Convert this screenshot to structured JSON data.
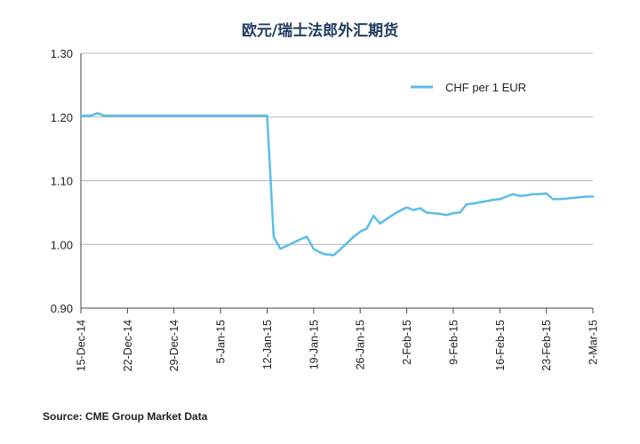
{
  "chart_data": {
    "type": "line",
    "title": "欧元/瑞士法郎外汇期货",
    "xlabel": "",
    "ylabel": "",
    "ylim": [
      0.9,
      1.3
    ],
    "yticks": [
      "0.90",
      "1.00",
      "1.10",
      "1.20",
      "1.30"
    ],
    "ytick_values": [
      0.9,
      1.0,
      1.1,
      1.2,
      1.3
    ],
    "xticks": [
      "15-Dec-14",
      "22-Dec-14",
      "29-Dec-14",
      "5-Jan-15",
      "12-Jan-15",
      "19-Jan-15",
      "26-Jan-15",
      "2-Feb-15",
      "9-Feb-15",
      "16-Feb-15",
      "23-Feb-15",
      "2-Mar-15"
    ],
    "xtick_days": [
      0,
      7,
      14,
      21,
      28,
      35,
      42,
      49,
      56,
      63,
      70,
      77
    ],
    "xlim": [
      0,
      77
    ],
    "grid": "horizontal",
    "legend_position": "top-right",
    "series": [
      {
        "name": "CHF per 1 EUR",
        "color": "#5bbde8",
        "x": [
          0,
          1.5,
          2.5,
          3.5,
          7,
          14,
          21,
          28,
          29,
          30,
          31,
          32,
          33,
          34,
          35,
          35.5,
          36.5,
          38,
          39,
          40,
          41,
          42,
          43,
          44,
          45,
          46,
          47,
          48,
          49,
          50,
          51,
          52,
          53,
          54,
          55,
          56,
          57,
          58,
          59,
          60,
          61,
          62,
          63,
          64,
          65,
          66,
          67,
          68,
          69,
          70,
          71,
          72,
          73,
          74,
          75,
          76,
          77
        ],
        "values": [
          1.202,
          1.202,
          1.206,
          1.202,
          1.202,
          1.202,
          1.202,
          1.202,
          1.012,
          0.993,
          0.998,
          1.003,
          1.008,
          1.012,
          0.993,
          0.99,
          0.985,
          0.983,
          0.992,
          1.002,
          1.012,
          1.02,
          1.025,
          1.045,
          1.033,
          1.04,
          1.047,
          1.053,
          1.058,
          1.054,
          1.057,
          1.05,
          1.049,
          1.048,
          1.046,
          1.049,
          1.05,
          1.063,
          1.064,
          1.066,
          1.068,
          1.07,
          1.071,
          1.075,
          1.079,
          1.076,
          1.077,
          1.079,
          1.079,
          1.08,
          1.071,
          1.071,
          1.072,
          1.073,
          1.074,
          1.075,
          1.075
        ]
      }
    ]
  },
  "footer": {
    "source": "Source: CME Group Market Data"
  }
}
